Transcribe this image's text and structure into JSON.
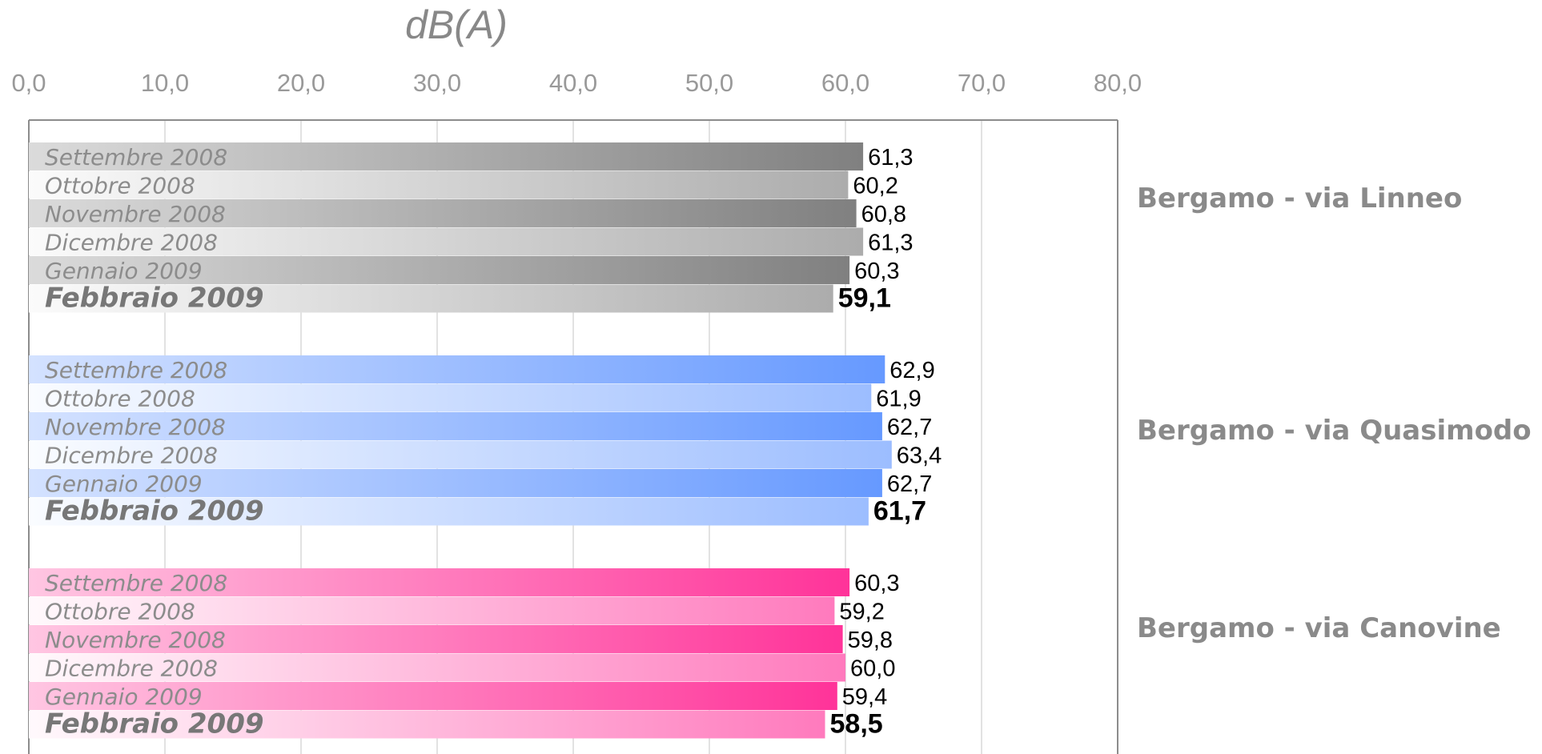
{
  "chart_data": {
    "type": "bar",
    "orientation": "horizontal",
    "title": "dB(A)",
    "xlim": [
      0,
      80
    ],
    "xticks": [
      "0,0",
      "10,0",
      "20,0",
      "30,0",
      "40,0",
      "50,0",
      "60,0",
      "70,0",
      "80,0"
    ],
    "grid": true,
    "groups": [
      {
        "name": "Bergamo - via Linneo",
        "color": "#808080",
        "bars": [
          {
            "label": "Settembre 2008",
            "value": 61.3,
            "display": "61,3"
          },
          {
            "label": "Ottobre 2008",
            "value": 60.2,
            "display": "60,2"
          },
          {
            "label": "Novembre 2008",
            "value": 60.8,
            "display": "60,8"
          },
          {
            "label": "Dicembre 2008",
            "value": 61.3,
            "display": "61,3"
          },
          {
            "label": "Gennaio 2009",
            "value": 60.3,
            "display": "60,3"
          },
          {
            "label": "Febbraio 2009",
            "value": 59.1,
            "display": "59,1"
          }
        ]
      },
      {
        "name": "Bergamo - via Quasimodo",
        "color": "#6699ff",
        "bars": [
          {
            "label": "Settembre 2008",
            "value": 62.9,
            "display": "62,9"
          },
          {
            "label": "Ottobre 2008",
            "value": 61.9,
            "display": "61,9"
          },
          {
            "label": "Novembre 2008",
            "value": 62.7,
            "display": "62,7"
          },
          {
            "label": "Dicembre 2008",
            "value": 63.4,
            "display": "63,4"
          },
          {
            "label": "Gennaio 2009",
            "value": 62.7,
            "display": "62,7"
          },
          {
            "label": "Febbraio 2009",
            "value": 61.7,
            "display": "61,7"
          }
        ]
      },
      {
        "name": "Bergamo - via Canovine",
        "color": "#ff3399",
        "bars": [
          {
            "label": "Settembre 2008",
            "value": 60.3,
            "display": "60,3"
          },
          {
            "label": "Ottobre 2008",
            "value": 59.2,
            "display": "59,2"
          },
          {
            "label": "Novembre 2008",
            "value": 59.8,
            "display": "59,8"
          },
          {
            "label": "Dicembre 2008",
            "value": 60.0,
            "display": "60,0"
          },
          {
            "label": "Gennaio 2009",
            "value": 59.4,
            "display": "59,4"
          },
          {
            "label": "Febbraio 2009",
            "value": 58.5,
            "display": "58,5"
          }
        ]
      }
    ]
  }
}
